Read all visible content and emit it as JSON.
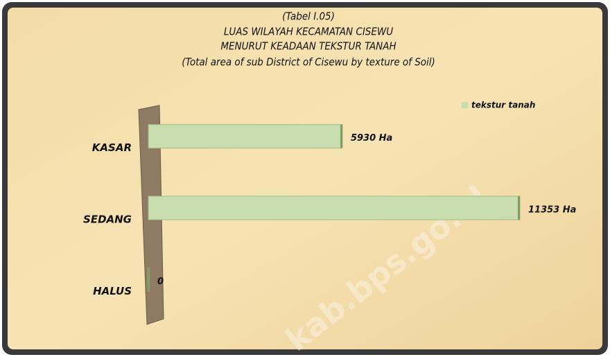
{
  "chart_data": {
    "type": "barh",
    "title": [
      "(Tabel I.05)",
      "LUAS WILAYAH KECAMATAN CISEWU",
      "MENURUT KEADAAN TEKSTUR TANAH",
      "(Total area of sub District of Cisewu by texture of Soil)"
    ],
    "categories": [
      "KASAR",
      "SEDANG",
      "HALUS"
    ],
    "series": [
      {
        "name": "tekstur tanah",
        "color": "#c8deae",
        "values": [
          5930,
          11353,
          0
        ],
        "value_labels": [
          "5930 Ha",
          "11353 Ha",
          "0"
        ]
      }
    ],
    "legend": "top-right",
    "watermark": "kab.bps.go.id"
  }
}
